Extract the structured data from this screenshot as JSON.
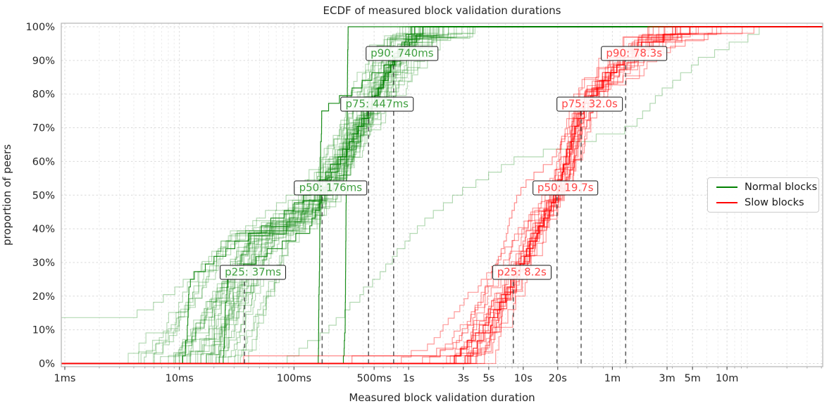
{
  "chart_data": {
    "type": "line",
    "subtype": "multi-curve-ecdf-steps",
    "title": "ECDF of measured block validation durations",
    "xlabel": "Measured block validation duration",
    "ylabel": "proportion of peers",
    "x_scale": "log",
    "grid": "both, light dashed",
    "legend_position": "center right",
    "x_ticks": [
      {
        "ms": 1,
        "label": "1ms"
      },
      {
        "ms": 10,
        "label": "10ms"
      },
      {
        "ms": 100,
        "label": "100ms"
      },
      {
        "ms": 500,
        "label": "500ms"
      },
      {
        "ms": 1000,
        "label": "1s"
      },
      {
        "ms": 3000,
        "label": "3s"
      },
      {
        "ms": 5000,
        "label": "5s"
      },
      {
        "ms": 10000,
        "label": "10s"
      },
      {
        "ms": 20000,
        "label": "20s"
      },
      {
        "ms": 60000,
        "label": "1m"
      },
      {
        "ms": 180000,
        "label": "3m"
      },
      {
        "ms": 300000,
        "label": "5m"
      },
      {
        "ms": 600000,
        "label": "10m"
      }
    ],
    "y_ticks": [
      {
        "pct": 0,
        "label": "0%"
      },
      {
        "pct": 10,
        "label": "10%"
      },
      {
        "pct": 20,
        "label": "20%"
      },
      {
        "pct": 30,
        "label": "30%"
      },
      {
        "pct": 40,
        "label": "40%"
      },
      {
        "pct": 50,
        "label": "50%"
      },
      {
        "pct": 60,
        "label": "60%"
      },
      {
        "pct": 70,
        "label": "70%"
      },
      {
        "pct": 80,
        "label": "80%"
      },
      {
        "pct": 90,
        "label": "90%"
      },
      {
        "pct": 100,
        "label": "100%"
      }
    ],
    "percentile_guide_color": "#3c3c3c",
    "series": [
      {
        "name": "Normal blocks",
        "color": "#008000",
        "label_text_color": "#40A040",
        "line_alpha": 0.28,
        "curves": 40,
        "seed": 42,
        "shift_sigma": 0.09,
        "spread_sigma": 0.22,
        "point_sigma": 0.035,
        "percentiles": [
          {
            "p": 25,
            "ms": 37,
            "label": "p25: 37ms"
          },
          {
            "p": 50,
            "ms": 176,
            "label": "p50: 176ms"
          },
          {
            "p": 75,
            "ms": 447,
            "label": "p75: 447ms"
          },
          {
            "p": 90,
            "ms": 740,
            "label": "p90: 740ms"
          }
        ],
        "anchors": [
          [
            0,
            14
          ],
          [
            5,
            18
          ],
          [
            10,
            22
          ],
          [
            20,
            30
          ],
          [
            25,
            37
          ],
          [
            32,
            44
          ],
          [
            38,
            56
          ],
          [
            41,
            95
          ],
          [
            45,
            130
          ],
          [
            50,
            176
          ],
          [
            60,
            265
          ],
          [
            70,
            365
          ],
          [
            75,
            447
          ],
          [
            80,
            520
          ],
          [
            85,
            620
          ],
          [
            90,
            740
          ],
          [
            95,
            950
          ],
          [
            98,
            1400
          ],
          [
            100,
            2200
          ]
        ],
        "special_curves": [
          {
            "alpha": 0.9,
            "anchors": [
              [
                0,
                165
              ],
              [
                75,
                172
              ],
              [
                80,
                300
              ],
              [
                90,
                740
              ],
              [
                100,
                1500
              ]
            ]
          },
          {
            "alpha": 0.9,
            "anchors": [
              [
                0,
                278
              ],
              [
                100,
                295
              ]
            ]
          },
          {
            "alpha": 0.85,
            "anchors": [
              [
                0,
                24
              ],
              [
                25,
                26
              ],
              [
                30,
                42
              ],
              [
                40,
                140
              ],
              [
                50,
                178
              ],
              [
                75,
                450
              ],
              [
                90,
                740
              ],
              [
                100,
                1200
              ]
            ]
          },
          {
            "alpha": 0.85,
            "anchors": [
              [
                0,
                11
              ],
              [
                25,
                12.5
              ],
              [
                35,
                30
              ],
              [
                45,
                90
              ],
              [
                55,
                185
              ],
              [
                70,
                380
              ],
              [
                85,
                650
              ],
              [
                95,
                900
              ],
              [
                100,
                1100
              ]
            ]
          },
          {
            "alpha": 0.3,
            "anchors": [
              [
                0,
                0.8
              ],
              [
                13,
                0.9
              ],
              [
                15,
                5
              ],
              [
                25,
                12
              ],
              [
                35,
                25
              ],
              [
                45,
                60
              ],
              [
                55,
                150
              ],
              [
                65,
                280
              ],
              [
                75,
                420
              ],
              [
                85,
                600
              ],
              [
                95,
                700
              ],
              [
                98,
                780
              ],
              [
                100,
                1600
              ]
            ]
          },
          {
            "alpha": 0.3,
            "anchors": [
              [
                0,
                80
              ],
              [
                10,
                200
              ],
              [
                25,
                520
              ],
              [
                40,
                1200
              ],
              [
                50,
                2600
              ],
              [
                60,
                8000
              ],
              [
                70,
                90000
              ],
              [
                80,
                160000
              ],
              [
                85,
                230000
              ],
              [
                90,
                350000
              ],
              [
                95,
                700000
              ],
              [
                98,
                1100000
              ],
              [
                100,
                1300000
              ]
            ]
          }
        ]
      },
      {
        "name": "Slow blocks",
        "color": "#ff0000",
        "label_text_color": "#FF4747",
        "line_alpha": 0.4,
        "curves": 18,
        "seed": 7,
        "shift_sigma": 0.06,
        "spread_sigma": 0.18,
        "point_sigma": 0.03,
        "percentiles": [
          {
            "p": 25,
            "ms": 8200,
            "label": "p25: 8.2s"
          },
          {
            "p": 50,
            "ms": 19700,
            "label": "p50: 19.7s"
          },
          {
            "p": 75,
            "ms": 32000,
            "label": "p75: 32.0s"
          },
          {
            "p": 90,
            "ms": 78300,
            "label": "p90: 78.3s"
          }
        ],
        "anchors": [
          [
            0,
            2600
          ],
          [
            5,
            3800
          ],
          [
            10,
            4600
          ],
          [
            20,
            6500
          ],
          [
            25,
            8200
          ],
          [
            30,
            9500
          ],
          [
            40,
            13000
          ],
          [
            50,
            19700
          ],
          [
            60,
            25000
          ],
          [
            70,
            29500
          ],
          [
            75,
            32000
          ],
          [
            80,
            38000
          ],
          [
            85,
            55000
          ],
          [
            90,
            78300
          ],
          [
            93,
            95000
          ],
          [
            96,
            130000
          ],
          [
            98,
            200000
          ],
          [
            100,
            420000
          ]
        ],
        "special_curves": [
          {
            "alpha": 0.45,
            "anchors": [
              [
                0,
                300
              ],
              [
                1.5,
                330
              ],
              [
                3,
                1600
              ],
              [
                5,
                2500
              ],
              [
                10,
                3200
              ],
              [
                20,
                4500
              ],
              [
                30,
                6000
              ],
              [
                40,
                7500
              ],
              [
                50,
                9000
              ],
              [
                55,
                11500
              ],
              [
                60,
                18000
              ],
              [
                70,
                26000
              ],
              [
                80,
                38000
              ],
              [
                90,
                70000
              ],
              [
                100,
                200000
              ]
            ]
          },
          {
            "alpha": 0.45,
            "anchors": [
              [
                0,
                30
              ],
              [
                1.3,
                37
              ],
              [
                2,
                2600
              ],
              [
                10,
                4200
              ],
              [
                25,
                8000
              ],
              [
                50,
                18000
              ],
              [
                75,
                30000
              ],
              [
                90,
                60000
              ],
              [
                100,
                150000
              ]
            ]
          },
          {
            "alpha": 0.85,
            "anchors": [
              [
                0,
                3000
              ],
              [
                10,
                5000
              ],
              [
                25,
                8400
              ],
              [
                50,
                20000
              ],
              [
                75,
                31500
              ],
              [
                90,
                76000
              ],
              [
                100,
                250000
              ]
            ]
          },
          {
            "alpha": 0.85,
            "anchors": [
              [
                0,
                2400
              ],
              [
                15,
                5600
              ],
              [
                30,
                10000
              ],
              [
                50,
                19000
              ],
              [
                70,
                28500
              ],
              [
                85,
                52000
              ],
              [
                95,
                110000
              ],
              [
                100,
                380000
              ]
            ]
          }
        ]
      }
    ]
  }
}
